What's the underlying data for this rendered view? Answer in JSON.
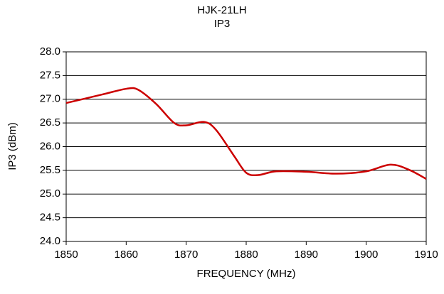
{
  "chart_data": {
    "type": "line",
    "title": [
      "HJK-21LH",
      "IP3"
    ],
    "x_label": "FREQUENCY (MHz)",
    "y_label": "IP3 (dBm)",
    "x": [
      1850,
      1856,
      1860,
      1862,
      1865,
      1868,
      1870,
      1873,
      1875,
      1878,
      1880,
      1882,
      1885,
      1890,
      1895,
      1900,
      1904,
      1907,
      1910
    ],
    "series": [
      {
        "name": "IP3",
        "color": "#cc0000",
        "values": [
          26.92,
          27.1,
          27.22,
          27.2,
          26.9,
          26.5,
          26.45,
          26.52,
          26.35,
          25.8,
          25.45,
          25.4,
          25.48,
          25.47,
          25.43,
          25.48,
          25.62,
          25.52,
          25.32
        ]
      }
    ],
    "xlim": [
      1850,
      1910
    ],
    "xticks": [
      1850,
      1860,
      1870,
      1880,
      1890,
      1900,
      1910
    ],
    "ylim": [
      24,
      28
    ],
    "yticks": [
      {
        "value": 24,
        "label": "24.0"
      },
      24.5,
      {
        "value": 25,
        "label": "25.0"
      },
      25.5,
      {
        "value": 26,
        "label": "26.0"
      },
      26.5,
      {
        "value": 27,
        "label": "27.0"
      },
      27.5,
      {
        "value": 28,
        "label": "28.0"
      }
    ],
    "grid": true
  }
}
